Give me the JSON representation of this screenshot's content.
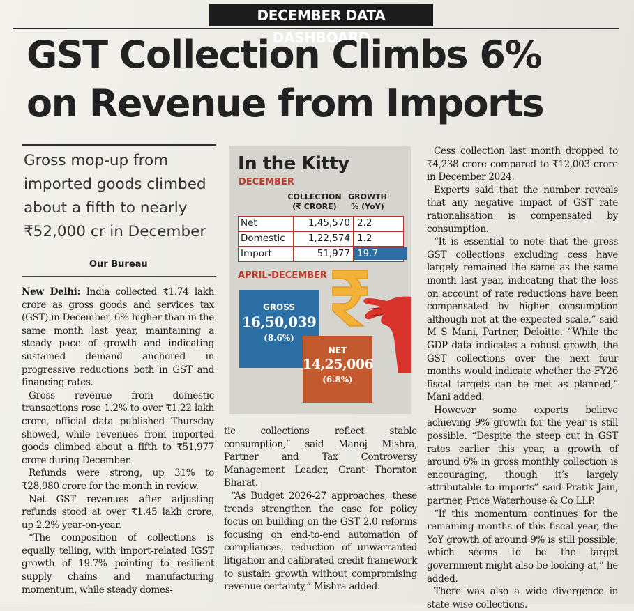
{
  "kicker": "DECEMBER DATA DASHBOARD",
  "headline": [
    "GST Collection Climbs 6%",
    "on Revenue from Imports"
  ],
  "deck": [
    "Gross mop-up from",
    "imported goods climbed",
    "about a fifth to nearly",
    "₹52,000 cr in December"
  ],
  "byline": "Our Bureau",
  "col1": {
    "dateline": "New Delhi:",
    "paras": [
      "India collected ₹1.74 lakh crore as gross goods and services tax (GST) in December, 6% higher than in the same month last year, maintaining a steady pace of growth and indicating sustained demand anchored in progressive reductions both in GST and financing rates.",
      "Gross revenue from domestic transactions rose 1.2% to over ₹1.22 lakh crore, official data published Thursday showed, while revenues from imported goods climbed about a fifth to ₹51,977 crore during December.",
      "Refunds were strong, up 31% to ₹28,980 crore for the month in review.",
      "Net GST revenues after adjusting refunds stood at over ₹1.45 lakh crore, up 2.2% year-on-year.",
      "“The composition of collections is equally telling, with import-related IGST growth of 19.7% pointing to resilient supply chains and manufacturing momentum, while steady domes-"
    ]
  },
  "col2": {
    "paras": [
      "tic collections reflect stable consumption,” said Manoj Mishra, Partner and Tax Controversy Management Leader, Grant Thornton Bharat.",
      "“As Budget 2026-27 approaches, these trends strengthen the case for policy focus on building on the GST 2.0 reforms focusing on end-to-end automation of compliances, reduction of unwarranted litigation and calibrated credit framework to sustain growth without compromising revenue certainty,” Mishra added."
    ]
  },
  "col3": {
    "paras": [
      "Cess collection last month dropped to ₹4,238 crore compared to ₹12,003 crore in December 2024.",
      "Experts said that the number reveals that any negative impact of GST rate rationalisation is compensated by consumption.",
      "“It is essential to note that the gross GST collections excluding cess have largely remained the same as the same month last year, indicating that the loss on account of rate reductions have been compensated by higher consumption although not at the expected scale,” said M S Mani, Partner, Deloitte. “While the GDP data indicates a robust growth, the GST collections over the next four months would indicate whether the FY26 fiscal targets can be met as planned,” Mani added.",
      "However some experts believe achieving 9% growth for the year is still possible. “Despite the steep cut in GST rates earlier this year, a growth of around 6% in gross monthly collection is encouraging, though it’s largely attributable to imports” said Pratik Jain, partner, Price Waterhouse & Co LLP.",
      "“If this momentum continues for the remaining months of this fiscal year, the YoY growth of around 9% is still possible, which seems to be the target government might also be looking at,” he added.",
      "There was also a wide divergence in state-wise collections."
    ]
  },
  "infobox": {
    "title": "In the Kitty",
    "december_label": "DECEMBER",
    "col_collection": "COLLECTION (₹ CRORE)",
    "col_growth": "GROWTH % (YoY)",
    "rows": [
      {
        "label": "Net",
        "collection": "1,45,570",
        "growth": "2.2"
      },
      {
        "label": "Domestic",
        "collection": "1,22,574",
        "growth": "1.2"
      },
      {
        "label": "Import",
        "collection": "51,977",
        "growth": "19.7"
      }
    ],
    "apr_dec_label": "APRIL-DECEMBER",
    "gross": {
      "label": "GROSS",
      "value": "16,50,039",
      "pct": "(8.6%)"
    },
    "net": {
      "label": "NET",
      "value": "14,25,006",
      "pct": "(6.8%)"
    },
    "colors": {
      "gross": "#2b6fa5",
      "net": "#c25a2d",
      "accent": "#b83a2a",
      "rupee": "#f2b23a",
      "hand": "#d8342b"
    }
  }
}
